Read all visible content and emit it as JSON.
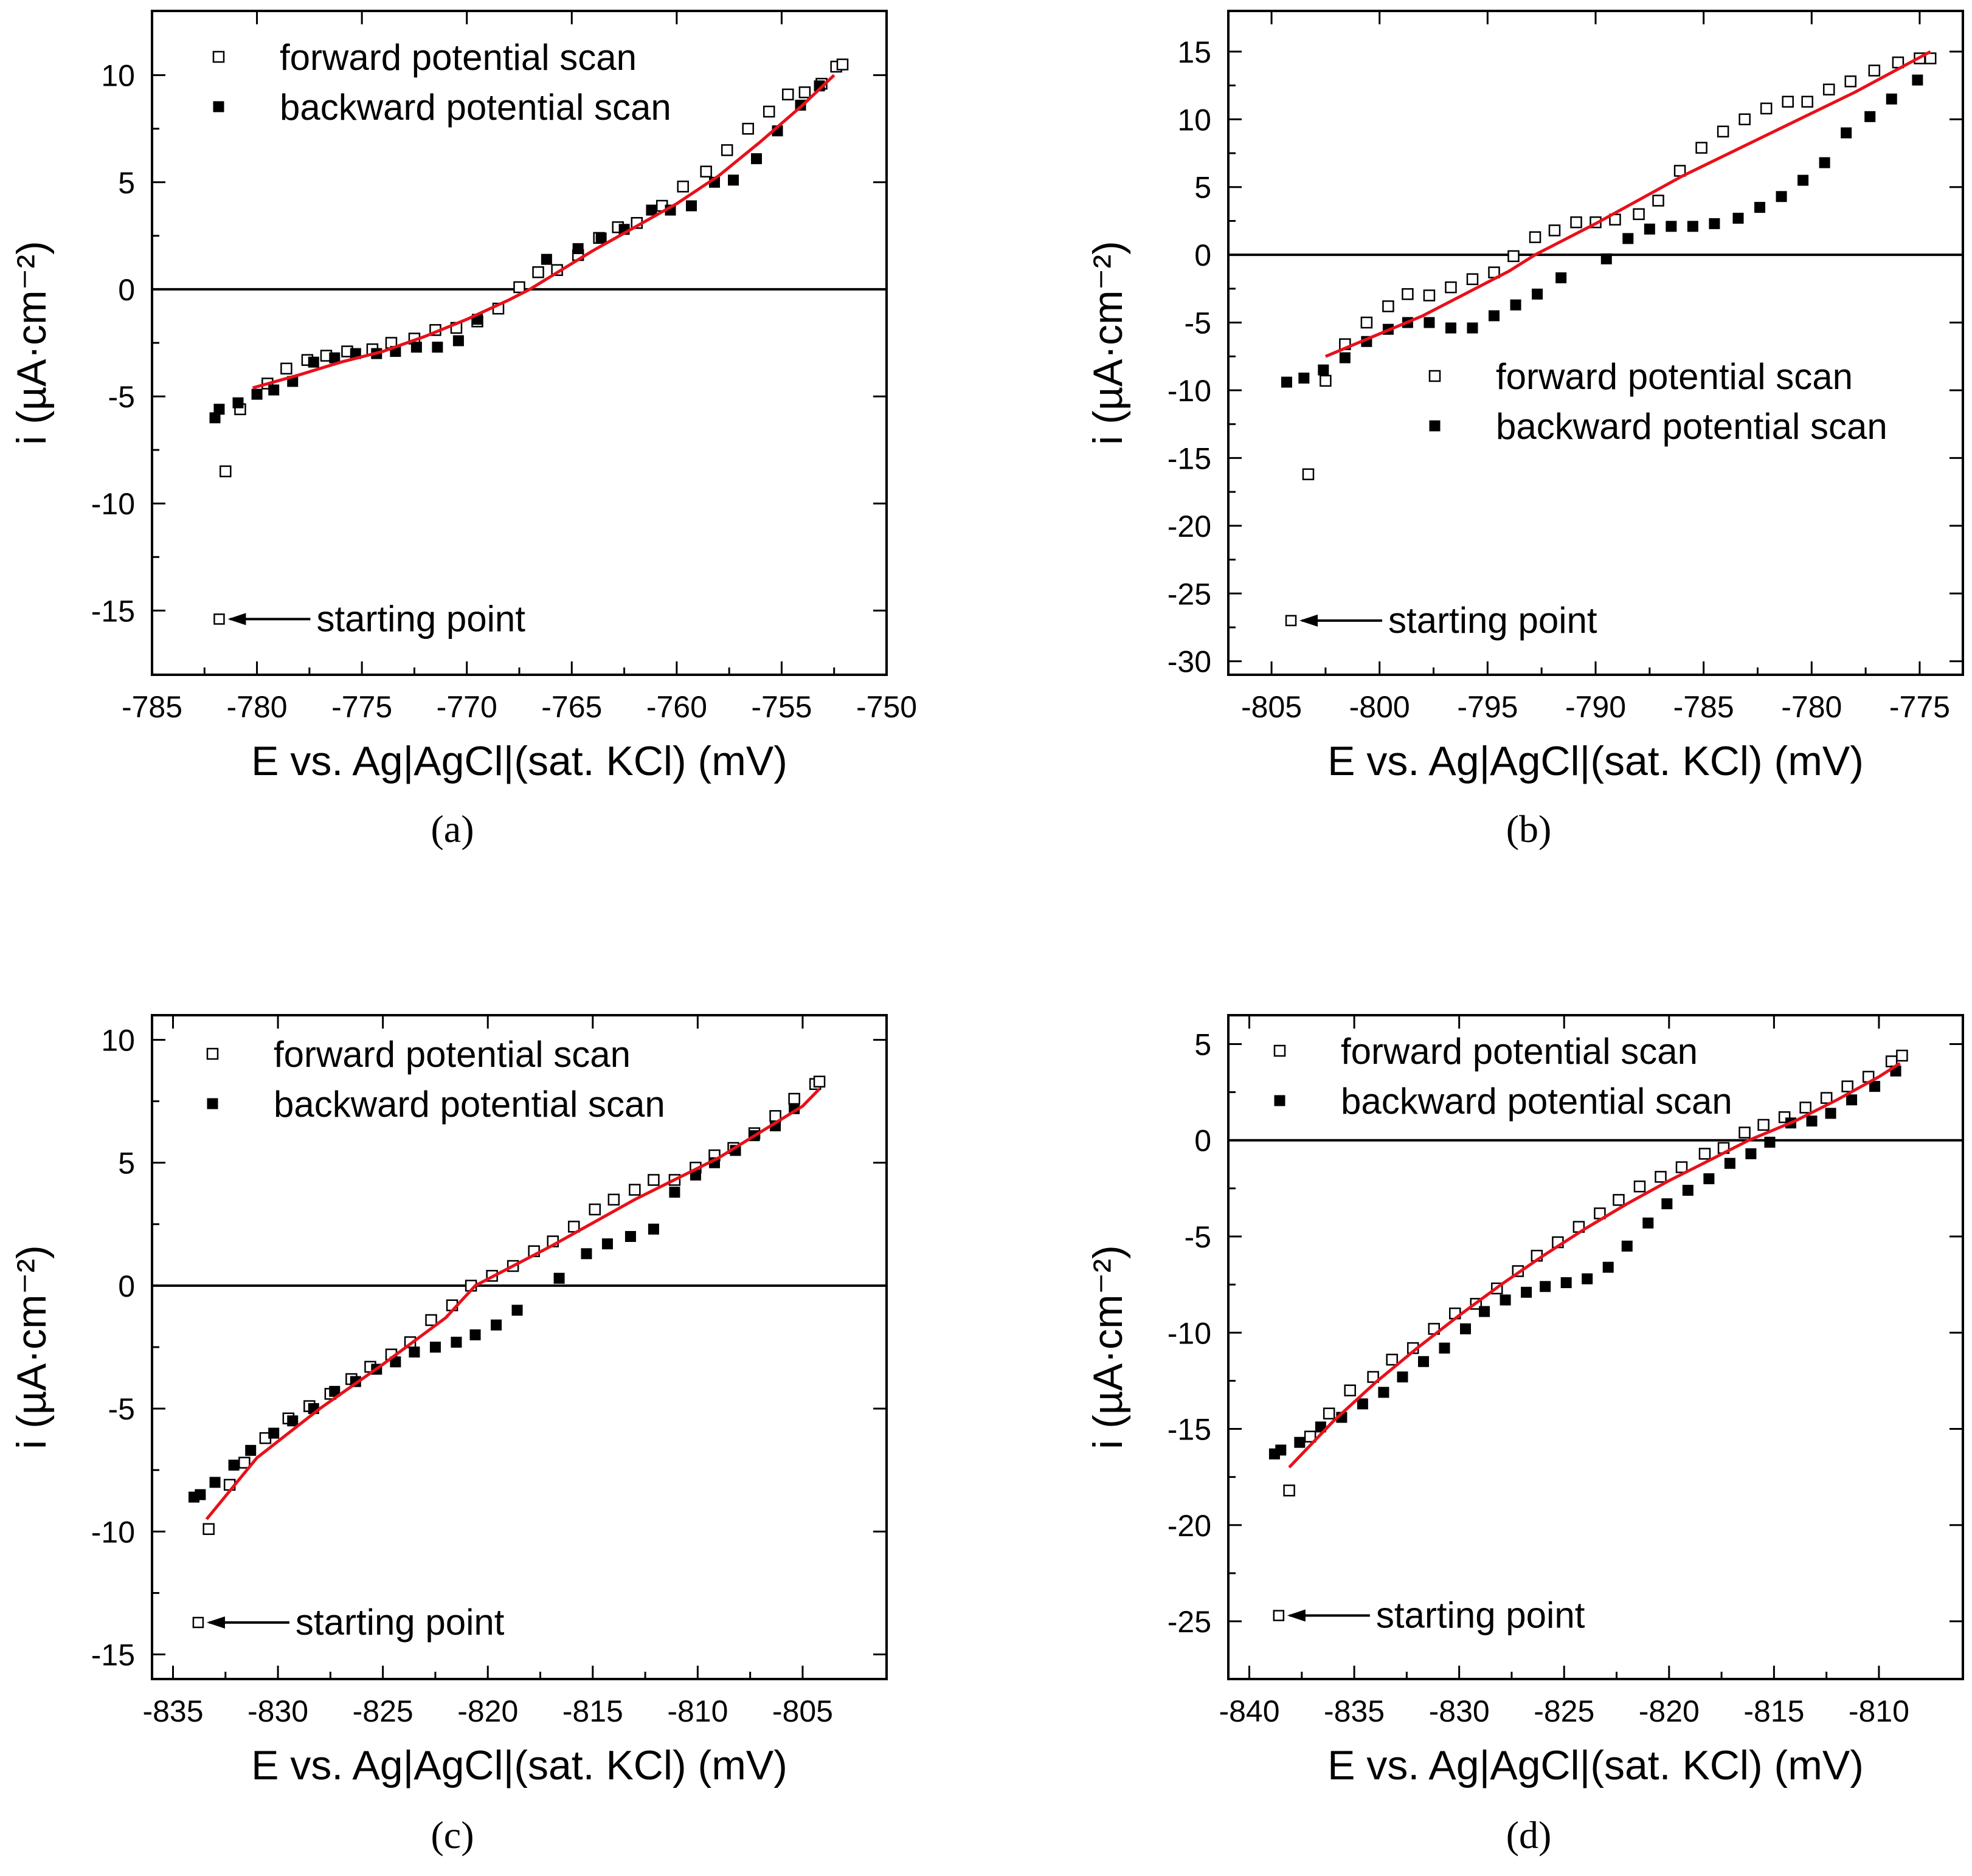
{
  "figure": {
    "panels": [
      "a",
      "b",
      "c",
      "d"
    ]
  },
  "chart_data": [
    {
      "panel": "(a)",
      "type": "scatter",
      "xlabel": "E vs. Ag|AgCl|(sat. KCl) (mV)",
      "ylabel": "i (µA·cm⁻²)",
      "xlim": [
        -785,
        -750
      ],
      "ylim": [
        -18,
        13
      ],
      "xticks": [
        -785,
        -780,
        -775,
        -770,
        -765,
        -760,
        -755,
        -750
      ],
      "yticks": [
        -15,
        -10,
        -5,
        0,
        5,
        10
      ],
      "legend": {
        "position": "top-left",
        "forward": "forward potential scan",
        "backward": "backward potential scan"
      },
      "annotation": {
        "text": "starting point",
        "x": -781.8,
        "y": -15.4
      },
      "zero_line": true,
      "series": [
        {
          "name": "forward potential scan",
          "marker": "open-square",
          "x": [
            -781.5,
            -780.8,
            -779.5,
            -778.6,
            -777.6,
            -776.7,
            -775.7,
            -774.5,
            -773.6,
            -772.5,
            -771.5,
            -770.5,
            -769.5,
            -768.5,
            -767.5,
            -766.6,
            -765.7,
            -764.7,
            -763.7,
            -762.8,
            -761.9,
            -760.7,
            -759.7,
            -758.6,
            -757.6,
            -756.6,
            -755.6,
            -754.7,
            -753.9,
            -753.1,
            -752.4,
            -752.1
          ],
          "y": [
            -8.5,
            -5.6,
            -4.4,
            -3.7,
            -3.3,
            -3.1,
            -2.9,
            -2.8,
            -2.5,
            -2.3,
            -1.9,
            -1.8,
            -1.5,
            -0.9,
            0.1,
            0.8,
            0.9,
            1.6,
            2.4,
            2.9,
            3.1,
            3.9,
            4.8,
            5.5,
            6.5,
            7.5,
            8.3,
            9.1,
            9.2,
            9.6,
            10.4,
            10.5
          ]
        },
        {
          "name": "backward potential scan",
          "marker": "filled-square",
          "x": [
            -782.0,
            -781.8,
            -780.9,
            -780.0,
            -779.2,
            -778.3,
            -777.3,
            -776.3,
            -775.3,
            -774.3,
            -773.4,
            -772.4,
            -771.4,
            -770.4,
            -769.5,
            -766.2,
            -764.7,
            -763.6,
            -762.5,
            -761.2,
            -760.3,
            -759.3,
            -758.2,
            -757.3,
            -756.2,
            -755.2,
            -754.1,
            -753.2
          ],
          "y": [
            -6.0,
            -5.6,
            -5.3,
            -4.9,
            -4.7,
            -4.3,
            -3.4,
            -3.2,
            -3.0,
            -3.0,
            -2.9,
            -2.7,
            -2.7,
            -2.4,
            -1.4,
            1.4,
            1.9,
            2.4,
            2.8,
            3.7,
            3.7,
            3.9,
            5.0,
            5.1,
            6.1,
            7.4,
            8.6,
            9.5
          ]
        },
        {
          "name": "fit",
          "line": true,
          "x": [
            -780.2,
            -778,
            -776,
            -774,
            -772,
            -770,
            -768,
            -767,
            -766,
            -764,
            -762,
            -760,
            -758,
            -756,
            -754,
            -752.5
          ],
          "y": [
            -4.6,
            -4.0,
            -3.4,
            -2.9,
            -2.2,
            -1.4,
            -0.5,
            0.0,
            0.6,
            1.8,
            2.9,
            4.0,
            5.3,
            6.9,
            8.6,
            10.0
          ]
        }
      ]
    },
    {
      "panel": "(b)",
      "type": "scatter",
      "xlabel": "E vs. Ag|AgCl|(sat. KCl) (mV)",
      "ylabel": "i (µA·cm⁻²)",
      "xlim": [
        -807,
        -773
      ],
      "ylim": [
        -31,
        18
      ],
      "xticks": [
        -805,
        -800,
        -795,
        -790,
        -785,
        -780,
        -775
      ],
      "yticks": [
        -30,
        -25,
        -20,
        -15,
        -10,
        -5,
        0,
        5,
        10,
        15
      ],
      "legend": {
        "position": "middle-right",
        "forward": "forward potential scan",
        "backward": "backward potential scan"
      },
      "annotation": {
        "text": "starting point",
        "x": -804.1,
        "y": -27.0
      },
      "zero_line": true,
      "series": [
        {
          "name": "forward potential scan",
          "marker": "open-square",
          "x": [
            -803.3,
            -802.5,
            -801.6,
            -800.6,
            -799.6,
            -798.7,
            -797.7,
            -796.7,
            -795.7,
            -794.7,
            -793.8,
            -792.8,
            -791.9,
            -790.9,
            -790.0,
            -789.1,
            -788.0,
            -787.1,
            -786.1,
            -785.1,
            -784.1,
            -783.1,
            -782.1,
            -781.1,
            -780.2,
            -779.2,
            -778.2,
            -777.1,
            -776.0,
            -775.0,
            -774.5
          ],
          "y": [
            -16.2,
            -9.3,
            -6.6,
            -5.0,
            -3.8,
            -2.9,
            -3.0,
            -2.4,
            -1.8,
            -1.3,
            -0.1,
            1.3,
            1.8,
            2.4,
            2.4,
            2.6,
            3.0,
            4.0,
            6.2,
            7.9,
            9.1,
            10.0,
            10.8,
            11.3,
            11.3,
            12.2,
            12.8,
            13.6,
            14.2,
            14.5,
            14.5
          ]
        },
        {
          "name": "backward potential scan",
          "marker": "filled-square",
          "x": [
            -804.3,
            -803.5,
            -802.6,
            -801.6,
            -800.6,
            -799.6,
            -798.7,
            -797.7,
            -796.7,
            -795.7,
            -794.7,
            -793.7,
            -792.7,
            -791.6,
            -789.5,
            -788.5,
            -787.5,
            -786.5,
            -785.5,
            -784.5,
            -783.4,
            -782.4,
            -781.4,
            -780.4,
            -779.4,
            -778.4,
            -777.3,
            -776.3,
            -775.1
          ],
          "y": [
            -9.4,
            -9.1,
            -8.5,
            -7.6,
            -6.4,
            -5.5,
            -5.0,
            -5.0,
            -5.4,
            -5.4,
            -4.5,
            -3.7,
            -2.9,
            -1.7,
            -0.3,
            1.2,
            1.9,
            2.1,
            2.1,
            2.3,
            2.7,
            3.5,
            4.3,
            5.5,
            6.8,
            9.0,
            10.2,
            11.5,
            12.9
          ]
        },
        {
          "name": "fit",
          "line": true,
          "x": [
            -802.5,
            -798,
            -794,
            -792.8,
            -790,
            -786,
            -782,
            -778,
            -774.5
          ],
          "y": [
            -7.5,
            -4.5,
            -1.2,
            0.0,
            2.3,
            5.8,
            8.9,
            12.0,
            15.0
          ]
        }
      ]
    },
    {
      "panel": "(c)",
      "type": "scatter",
      "xlabel": "E vs. Ag|AgCl|(sat. KCl) (mV)",
      "ylabel": "i (µA·cm⁻²)",
      "xlim": [
        -836,
        -801
      ],
      "ylim": [
        -16,
        11
      ],
      "xticks": [
        -835,
        -830,
        -825,
        -820,
        -815,
        -810,
        -805
      ],
      "yticks": [
        -15,
        -10,
        -5,
        0,
        5,
        10
      ],
      "legend": {
        "position": "top-left",
        "forward": "forward potential scan",
        "backward": "backward potential scan"
      },
      "annotation": {
        "text": "starting point",
        "x": -833.8,
        "y": -13.7
      },
      "zero_line": true,
      "series": [
        {
          "name": "forward potential scan",
          "marker": "open-square",
          "x": [
            -833.3,
            -832.3,
            -831.6,
            -830.6,
            -829.5,
            -828.5,
            -827.5,
            -826.5,
            -825.6,
            -824.6,
            -823.7,
            -822.7,
            -821.7,
            -820.8,
            -819.8,
            -818.8,
            -817.8,
            -816.9,
            -815.9,
            -814.9,
            -814.0,
            -813.0,
            -812.1,
            -811.1,
            -810.1,
            -809.2,
            -808.3,
            -807.3,
            -806.3,
            -805.4,
            -804.4,
            -804.2
          ],
          "y": [
            -9.9,
            -8.1,
            -7.2,
            -6.2,
            -5.4,
            -4.9,
            -4.4,
            -3.8,
            -3.3,
            -2.8,
            -2.3,
            -1.4,
            -0.8,
            0.0,
            0.4,
            0.8,
            1.4,
            1.8,
            2.4,
            3.1,
            3.5,
            3.9,
            4.3,
            4.3,
            4.8,
            5.3,
            5.6,
            6.2,
            6.9,
            7.6,
            8.2,
            8.3
          ]
        },
        {
          "name": "backward potential scan",
          "marker": "filled-square",
          "x": [
            -834.0,
            -833.7,
            -833.0,
            -832.1,
            -831.3,
            -830.2,
            -829.3,
            -828.3,
            -827.3,
            -826.3,
            -825.3,
            -824.4,
            -823.5,
            -822.5,
            -821.5,
            -820.6,
            -819.6,
            -818.6,
            -816.6,
            -815.3,
            -814.3,
            -813.2,
            -812.1,
            -811.1,
            -810.1,
            -809.2,
            -808.2,
            -807.3,
            -806.3,
            -805.4
          ],
          "y": [
            -8.6,
            -8.5,
            -8.0,
            -7.3,
            -6.7,
            -6.0,
            -5.5,
            -5.0,
            -4.3,
            -3.9,
            -3.4,
            -3.1,
            -2.7,
            -2.5,
            -2.3,
            -2.0,
            -1.6,
            -1.0,
            0.3,
            1.3,
            1.7,
            2.0,
            2.3,
            3.8,
            4.5,
            5.0,
            5.5,
            6.1,
            6.5,
            7.2
          ]
        },
        {
          "name": "fit",
          "line": true,
          "x": [
            -833.4,
            -831,
            -828,
            -825,
            -822,
            -820.6,
            -817,
            -813,
            -809,
            -805,
            -804.2
          ],
          "y": [
            -9.5,
            -7.0,
            -5.0,
            -3.2,
            -1.3,
            0.0,
            1.6,
            3.5,
            5.2,
            7.3,
            8.0
          ]
        }
      ]
    },
    {
      "panel": "(d)",
      "type": "scatter",
      "xlabel": "E vs. Ag|AgCl|(sat. KCl) (mV)",
      "ylabel": "i (µA·cm⁻²)",
      "xlim": [
        -841,
        -806
      ],
      "ylim": [
        -28,
        6.5
      ],
      "xticks": [
        -840,
        -835,
        -830,
        -825,
        -820,
        -815,
        -810
      ],
      "yticks": [
        -25,
        -20,
        -15,
        -10,
        -5,
        0,
        5
      ],
      "legend": {
        "position": "top-left",
        "forward": "forward potential scan",
        "backward": "backward potential scan"
      },
      "annotation": {
        "text": "starting point",
        "x": -838.6,
        "y": -24.7
      },
      "zero_line": true,
      "series": [
        {
          "name": "forward potential scan",
          "marker": "open-square",
          "x": [
            -838.1,
            -837.1,
            -836.2,
            -835.2,
            -834.1,
            -833.2,
            -832.2,
            -831.2,
            -830.2,
            -829.2,
            -828.2,
            -827.2,
            -826.3,
            -825.3,
            -824.3,
            -823.3,
            -822.4,
            -821.4,
            -820.4,
            -819.4,
            -818.3,
            -817.4,
            -816.4,
            -815.5,
            -814.5,
            -813.5,
            -812.5,
            -811.5,
            -810.5,
            -809.4,
            -808.9
          ],
          "y": [
            -18.2,
            -15.4,
            -14.2,
            -13.0,
            -12.3,
            -11.4,
            -10.8,
            -9.8,
            -9.0,
            -8.5,
            -7.7,
            -6.8,
            -6.0,
            -5.3,
            -4.5,
            -3.8,
            -3.1,
            -2.4,
            -1.9,
            -1.4,
            -0.7,
            -0.4,
            0.4,
            0.8,
            1.2,
            1.7,
            2.2,
            2.8,
            3.3,
            4.1,
            4.4
          ]
        },
        {
          "name": "backward potential scan",
          "marker": "filled-square",
          "x": [
            -838.8,
            -838.5,
            -837.6,
            -836.6,
            -835.6,
            -834.6,
            -833.6,
            -832.7,
            -831.7,
            -830.7,
            -829.7,
            -828.8,
            -827.8,
            -826.8,
            -825.9,
            -824.9,
            -823.9,
            -822.9,
            -822.0,
            -821.0,
            -820.1,
            -819.1,
            -818.1,
            -817.1,
            -816.1,
            -815.2,
            -814.2,
            -813.2,
            -812.3,
            -811.3,
            -810.2,
            -809.2
          ],
          "y": [
            -16.3,
            -16.1,
            -15.7,
            -14.9,
            -14.4,
            -13.7,
            -13.1,
            -12.3,
            -11.5,
            -10.8,
            -9.8,
            -8.9,
            -8.3,
            -7.9,
            -7.6,
            -7.4,
            -7.2,
            -6.6,
            -5.5,
            -4.3,
            -3.3,
            -2.6,
            -2.0,
            -1.2,
            -0.7,
            -0.1,
            0.9,
            1.0,
            1.4,
            2.1,
            2.8,
            3.6
          ]
        },
        {
          "name": "fit",
          "line": true,
          "x": [
            -838.1,
            -836,
            -834,
            -832,
            -830,
            -828,
            -826,
            -824,
            -822,
            -820,
            -818,
            -816.2,
            -814,
            -812,
            -810,
            -809
          ],
          "y": [
            -17.0,
            -14.6,
            -12.6,
            -10.8,
            -9.1,
            -7.5,
            -6.0,
            -4.6,
            -3.3,
            -2.1,
            -1.0,
            0.0,
            1.0,
            2.1,
            3.3,
            4.0
          ]
        }
      ]
    }
  ]
}
